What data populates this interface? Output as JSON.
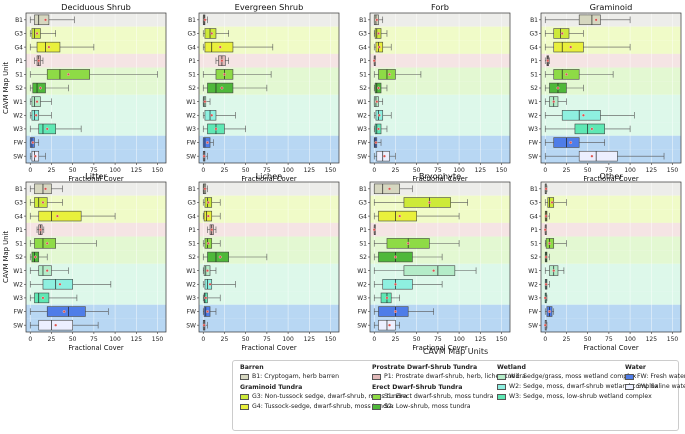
{
  "figure": {
    "ylabel": "CAVM Map Unit",
    "xlabel": "Fractional Cover",
    "xticks": [
      0,
      25,
      50,
      75,
      100,
      125,
      150
    ],
    "xlim": [
      -5,
      160
    ]
  },
  "units": [
    "B1",
    "G3",
    "G4",
    "P1",
    "S1",
    "S2",
    "W1",
    "W2",
    "W3",
    "FW",
    "SW"
  ],
  "unit_colors": {
    "B1": "#d6d7c0",
    "G3": "#cdea39",
    "G4": "#e9f03c",
    "P1": "#e2b9b9",
    "S1": "#8edb46",
    "S2": "#4fb83a",
    "W1": "#b4ecc8",
    "W2": "#8ef0e0",
    "W3": "#5fe8b4",
    "FW": "#4f7de8",
    "SW": "#ecefff"
  },
  "band_colors": {
    "B1": "#ededea",
    "G3": "#f0fbc8",
    "G4": "#f0fbc8",
    "P1": "#f5e4e4",
    "S1": "#e3f8d2",
    "S2": "#e3f8d2",
    "W1": "#ddf8ea",
    "W2": "#ddf8ea",
    "W3": "#ddf8ea",
    "FW": "#b8d7f3",
    "SW": "#b8d7f3"
  },
  "chart_data": [
    {
      "type": "box",
      "title": "Deciduous Shrub",
      "stats": {
        "B1": [
          0,
          5,
          10,
          22,
          52,
          18
        ],
        "G3": [
          0,
          2,
          5,
          12,
          30,
          8
        ],
        "G4": [
          0,
          8,
          18,
          35,
          75,
          22
        ],
        "P1": [
          5,
          8,
          10,
          12,
          15,
          10
        ],
        "S1": [
          0,
          20,
          35,
          70,
          150,
          45
        ],
        "S2": [
          0,
          3,
          8,
          18,
          45,
          12
        ],
        "W1": [
          0,
          2,
          5,
          12,
          25,
          8
        ],
        "W2": [
          0,
          2,
          5,
          10,
          25,
          7
        ],
        "W3": [
          0,
          10,
          15,
          30,
          60,
          20
        ],
        "FW": [
          0,
          0,
          2,
          5,
          10,
          3
        ],
        "SW": [
          0,
          2,
          5,
          10,
          18,
          6
        ]
      }
    },
    {
      "type": "box",
      "title": "Evergreen Shrub",
      "stats": {
        "B1": [
          0,
          0,
          1,
          2,
          5,
          2
        ],
        "G3": [
          0,
          2,
          8,
          15,
          30,
          10
        ],
        "G4": [
          0,
          2,
          10,
          35,
          82,
          20
        ],
        "P1": [
          15,
          18,
          22,
          26,
          30,
          22
        ],
        "S1": [
          0,
          15,
          25,
          35,
          80,
          25
        ],
        "S2": [
          0,
          5,
          15,
          35,
          75,
          22
        ],
        "W1": [
          0,
          0,
          1,
          3,
          8,
          2
        ],
        "W2": [
          0,
          2,
          8,
          15,
          38,
          10
        ],
        "W3": [
          0,
          5,
          15,
          25,
          50,
          15
        ],
        "FW": [
          0,
          0,
          2,
          8,
          12,
          5
        ],
        "SW": [
          0,
          0,
          1,
          2,
          5,
          1
        ]
      }
    },
    {
      "type": "box",
      "title": "Forb",
      "stats": {
        "B1": [
          0,
          0,
          2,
          5,
          10,
          3
        ],
        "G3": [
          0,
          1,
          3,
          8,
          15,
          5
        ],
        "G4": [
          0,
          2,
          5,
          10,
          20,
          6
        ],
        "P1": [
          0,
          0,
          0,
          0,
          0,
          0
        ],
        "S1": [
          0,
          5,
          15,
          25,
          55,
          18
        ],
        "S2": [
          0,
          1,
          3,
          8,
          15,
          5
        ],
        "W1": [
          0,
          0,
          2,
          5,
          10,
          3
        ],
        "W2": [
          0,
          2,
          5,
          10,
          20,
          6
        ],
        "W3": [
          0,
          1,
          3,
          8,
          15,
          5
        ],
        "FW": [
          0,
          0,
          1,
          3,
          8,
          2
        ],
        "SW": [
          0,
          3,
          10,
          18,
          25,
          12
        ]
      }
    },
    {
      "type": "box",
      "title": "Graminoid",
      "stats": {
        "B1": [
          0,
          40,
          55,
          65,
          100,
          60
        ],
        "G3": [
          0,
          10,
          18,
          28,
          45,
          20
        ],
        "G4": [
          0,
          10,
          20,
          45,
          100,
          30
        ],
        "P1": [
          0,
          2,
          3,
          4,
          5,
          3
        ],
        "S1": [
          0,
          10,
          20,
          40,
          80,
          25
        ],
        "S2": [
          0,
          5,
          15,
          25,
          45,
          15
        ],
        "W1": [
          0,
          5,
          10,
          15,
          25,
          10
        ],
        "W2": [
          0,
          20,
          40,
          65,
          105,
          45
        ],
        "W3": [
          0,
          35,
          50,
          70,
          100,
          55
        ],
        "FW": [
          0,
          10,
          25,
          40,
          70,
          30
        ],
        "SW": [
          0,
          40,
          60,
          85,
          140,
          55
        ]
      }
    },
    {
      "type": "box",
      "title": "Litter",
      "stats": {
        "B1": [
          0,
          5,
          15,
          25,
          38,
          18
        ],
        "G3": [
          0,
          5,
          10,
          20,
          38,
          15
        ],
        "G4": [
          0,
          10,
          25,
          60,
          100,
          32
        ],
        "P1": [
          8,
          10,
          12,
          14,
          16,
          12
        ],
        "S1": [
          0,
          5,
          15,
          30,
          78,
          20
        ],
        "S2": [
          0,
          2,
          5,
          10,
          20,
          6
        ],
        "W1": [
          0,
          10,
          15,
          25,
          45,
          20
        ],
        "W2": [
          0,
          15,
          30,
          50,
          95,
          35
        ],
        "W3": [
          0,
          5,
          10,
          22,
          55,
          15
        ],
        "FW": [
          0,
          20,
          45,
          65,
          92,
          40
        ],
        "SW": [
          0,
          10,
          25,
          50,
          80,
          30
        ]
      }
    },
    {
      "type": "box",
      "title": "Lichen",
      "stats": {
        "B1": [
          0,
          0,
          1,
          3,
          5,
          2
        ],
        "G3": [
          0,
          2,
          5,
          10,
          20,
          6
        ],
        "G4": [
          0,
          1,
          4,
          10,
          20,
          6
        ],
        "P1": [
          5,
          8,
          10,
          12,
          15,
          10
        ],
        "S1": [
          0,
          2,
          5,
          10,
          20,
          6
        ],
        "S2": [
          0,
          5,
          15,
          30,
          75,
          20
        ],
        "W1": [
          0,
          1,
          3,
          8,
          15,
          5
        ],
        "W2": [
          0,
          2,
          5,
          10,
          38,
          8
        ],
        "W3": [
          0,
          1,
          2,
          5,
          20,
          3
        ],
        "FW": [
          0,
          1,
          3,
          8,
          15,
          5
        ],
        "SW": [
          0,
          0,
          1,
          2,
          5,
          1
        ]
      }
    },
    {
      "type": "box",
      "title": "Bryophyte",
      "stats": {
        "B1": [
          0,
          0,
          10,
          30,
          45,
          18
        ],
        "G3": [
          0,
          35,
          65,
          90,
          110,
          65
        ],
        "G4": [
          0,
          5,
          25,
          50,
          100,
          30
        ],
        "P1": [
          0,
          0,
          0,
          0,
          0,
          0
        ],
        "S1": [
          0,
          15,
          40,
          65,
          100,
          40
        ],
        "S2": [
          0,
          5,
          25,
          45,
          80,
          25
        ],
        "W1": [
          0,
          35,
          75,
          95,
          120,
          70
        ],
        "W2": [
          0,
          10,
          25,
          45,
          80,
          25
        ],
        "W3": [
          0,
          8,
          15,
          20,
          30,
          15
        ],
        "FW": [
          0,
          5,
          25,
          40,
          70,
          25
        ],
        "SW": [
          0,
          5,
          15,
          25,
          30,
          18
        ]
      }
    },
    {
      "type": "box",
      "title": "Other",
      "stats": {
        "B1": [
          0,
          0,
          0,
          1,
          2,
          1
        ],
        "G3": [
          0,
          3,
          5,
          10,
          25,
          8
        ],
        "G4": [
          0,
          0,
          1,
          2,
          5,
          1
        ],
        "P1": [
          0,
          0,
          0,
          0,
          0,
          0
        ],
        "S1": [
          0,
          1,
          5,
          10,
          25,
          5
        ],
        "S2": [
          0,
          0,
          1,
          2,
          5,
          1
        ],
        "W1": [
          0,
          5,
          10,
          15,
          22,
          10
        ],
        "W2": [
          0,
          0,
          1,
          2,
          5,
          1
        ],
        "W3": [
          0,
          0,
          0,
          1,
          2,
          0
        ],
        "FW": [
          0,
          2,
          5,
          8,
          10,
          5
        ],
        "SW": [
          0,
          0,
          0,
          1,
          2,
          0
        ]
      }
    }
  ],
  "legend": {
    "title": "CAVM Map Units",
    "groups": [
      {
        "heading": "Barren",
        "items": [
          {
            "unit": "B1",
            "label": "B1: Cryptogam, herb barren"
          }
        ]
      },
      {
        "heading": "Graminoid Tundra",
        "items": [
          {
            "unit": "G3",
            "label": "G3: Non-tussock sedge, dwarf-shrub, moss tundra"
          },
          {
            "unit": "G4",
            "label": "G4: Tussock-sedge, dwarf-shrub, moss tundra"
          }
        ]
      },
      {
        "heading": "Prostrate Dwarf-Shrub Tundra",
        "items": [
          {
            "unit": "P1",
            "label": "P1: Prostrate dwarf-shrub, herb, lichen tundra"
          }
        ]
      },
      {
        "heading": "Erect Dwarf-Shrub Tundra",
        "items": [
          {
            "unit": "S1",
            "label": "S1: Erect dwarf-shrub, moss tundra"
          },
          {
            "unit": "S2",
            "label": "S2: Low-shrub, moss tundra"
          }
        ]
      },
      {
        "heading": "Wetland",
        "items": [
          {
            "unit": "W1",
            "label": "W1: Sedge/grass, moss wetland complex"
          },
          {
            "unit": "W2",
            "label": "W2: Sedge, moss, dwarf-shrub wetland complex"
          },
          {
            "unit": "W3",
            "label": "W3: Sedge, moss, low-shrub wetland complex"
          }
        ]
      },
      {
        "heading": "Water",
        "items": [
          {
            "unit": "FW",
            "label": "FW: Fresh water"
          },
          {
            "unit": "SW",
            "label": "SW: Saline water"
          }
        ]
      }
    ]
  }
}
